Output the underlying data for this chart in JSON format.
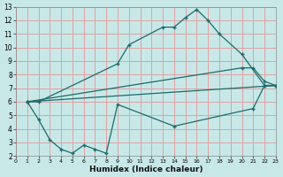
{
  "xlabel": "Humidex (Indice chaleur)",
  "xlim": [
    0,
    23
  ],
  "ylim": [
    2,
    13
  ],
  "xticks": [
    0,
    1,
    2,
    3,
    4,
    5,
    6,
    7,
    8,
    9,
    10,
    11,
    12,
    13,
    14,
    15,
    16,
    17,
    18,
    19,
    20,
    21,
    22,
    23
  ],
  "yticks": [
    2,
    3,
    4,
    5,
    6,
    7,
    8,
    9,
    10,
    11,
    12,
    13
  ],
  "bg_color": "#c8e8e8",
  "grid_color": "#e0a0a0",
  "line_color": "#1a6b6b",
  "curve1_x": [
    1,
    2,
    9,
    10,
    13,
    14,
    15,
    16,
    17,
    18,
    20,
    22,
    23
  ],
  "curve1_y": [
    6.0,
    6.0,
    8.8,
    10.2,
    11.5,
    11.5,
    12.2,
    12.8,
    12.0,
    11.0,
    9.5,
    7.2,
    7.2
  ],
  "curve2_x": [
    1,
    23
  ],
  "curve2_y": [
    6.0,
    7.2
  ],
  "curve2b_x": [
    1,
    20,
    21,
    22,
    23
  ],
  "curve2b_y": [
    6.0,
    8.5,
    8.5,
    7.5,
    7.2
  ],
  "curve3_x": [
    1,
    2,
    3,
    4,
    5,
    6,
    7,
    8,
    9,
    14,
    21,
    22,
    23
  ],
  "curve3_y": [
    6.0,
    4.7,
    3.2,
    2.5,
    2.2,
    2.8,
    2.5,
    2.2,
    5.8,
    4.2,
    5.5,
    7.2,
    7.2
  ]
}
